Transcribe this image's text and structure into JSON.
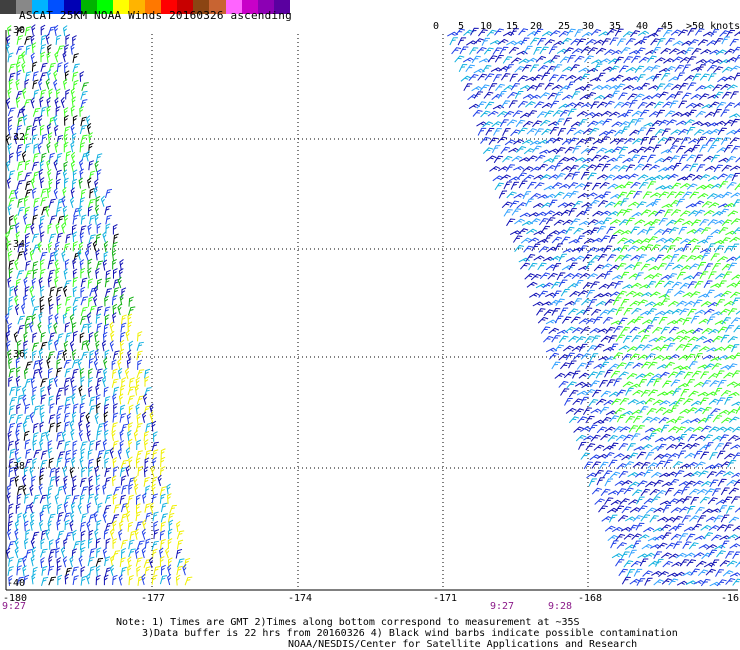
{
  "title": "ASCAT 25KM NOAA Winds 20160326 ascending",
  "legend": {
    "labels": [
      "0",
      "5",
      "10",
      "15",
      "20",
      "25",
      "30",
      "35",
      "40",
      "45",
      ">50 knots"
    ],
    "colors": [
      "#404040",
      "#888888",
      "#00b4ff",
      "#0050ff",
      "#0000b4",
      "#00b400",
      "#00ff00",
      "#ffff00",
      "#ffb400",
      "#ff7800",
      "#ff0000",
      "#c80000",
      "#8b4513",
      "#c86432",
      "#ff64ff",
      "#c800c8",
      "#8c00b4",
      "#5a00a0"
    ]
  },
  "lat_labels": [
    "-30",
    "-32",
    "-34",
    "-36",
    "-38",
    "-40"
  ],
  "lon_labels": [
    "-180",
    "-177",
    "-174",
    "-171",
    "-168",
    "-16"
  ],
  "time_labels": [
    "9:27",
    "9:27",
    "9:28"
  ],
  "notes": [
    "Note: 1) Times are GMT 2)Times along bottom correspond to measurement at ~35S",
    "3)Data buffer is 22 hrs from 20160326 4) Black wind barbs indicate possible contamination",
    "NOAA/NESDIS/Center for Satellite Applications and Research"
  ],
  "barb_colors": {
    "dark_blue": "#1010b4",
    "blue": "#2040e8",
    "cyan": "#10b0e0",
    "light_blue": "#30a0ff",
    "green": "#10b010",
    "bright_green": "#40ff20",
    "yellow": "#f0f000",
    "black": "#000000"
  }
}
